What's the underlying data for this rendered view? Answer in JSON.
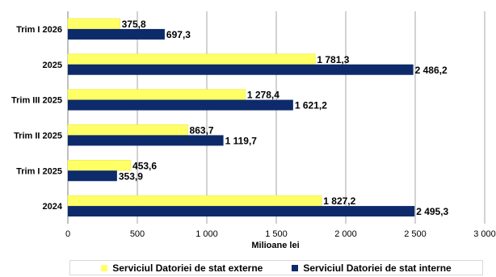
{
  "chart_data": {
    "type": "bar",
    "orientation": "horizontal",
    "categories": [
      "Trim I 2026",
      "2025",
      "Trim III 2025",
      "Trim II 2025",
      "Trim I 2025",
      "2024"
    ],
    "series": [
      {
        "name": "Serviciul Datoriei de stat externe",
        "color": "#ffff66",
        "values": [
          375.8,
          1781.3,
          1278.4,
          863.7,
          453.6,
          1827.2
        ],
        "labels": [
          "375,8",
          "1 781,3",
          "1 278,4",
          "863,7",
          "453,6",
          "1 827,2"
        ]
      },
      {
        "name": "Serviciul Datoriei de stat interne",
        "color": "#0d2a6b",
        "values": [
          697.3,
          2486.2,
          1621.2,
          1119.7,
          353.9,
          2495.3
        ],
        "labels": [
          "697,3",
          "2 486,2",
          "1 621,2",
          "1 119,7",
          "353,9",
          "2 495,3"
        ]
      }
    ],
    "xlabel": "Milioane lei",
    "xlim": [
      0,
      3000
    ],
    "xticks": [
      0,
      500,
      1000,
      1500,
      2000,
      2500,
      3000
    ],
    "xtick_labels": [
      "0",
      "500",
      "1 000",
      "1 500",
      "2 000",
      "2 500",
      "3 000"
    ],
    "grid": true,
    "legend_position": "bottom"
  }
}
